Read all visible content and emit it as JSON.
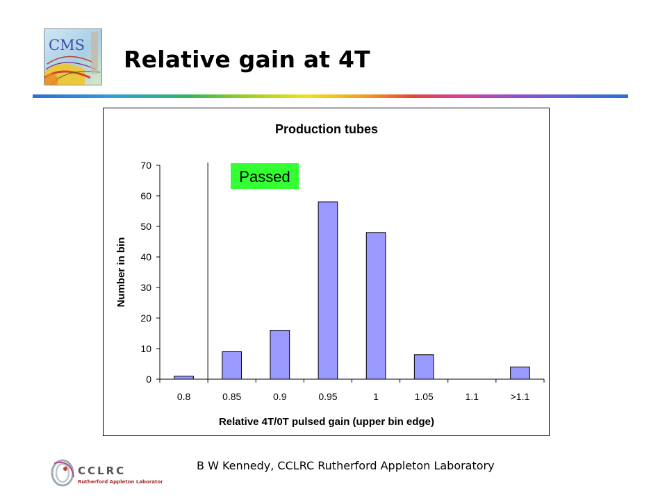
{
  "slide": {
    "title": "Relative gain at 4T",
    "footer": "B W Kennedy, CCLRC Rutherford Appleton Laboratory",
    "rule_colors": [
      "#2d6fd0",
      "#30b65a",
      "#f2e01e",
      "#f39a1e",
      "#e5433c",
      "#d8409a",
      "#8d4fd6"
    ]
  },
  "logos": {
    "cms": {
      "text": "CMS"
    },
    "cclrc": {
      "text": "CCLRC",
      "subtext": "Rutherford Appleton Laboratory"
    }
  },
  "chart_data": {
    "type": "bar",
    "title": "Production tubes",
    "xlabel": "Relative 4T/0T pulsed gain (upper bin edge)",
    "ylabel": "Number in bin",
    "categories": [
      "0.8",
      "0.85",
      "0.9",
      "0.95",
      "1",
      "1.05",
      "1.1",
      ">1.1"
    ],
    "values": [
      1,
      9,
      16,
      58,
      48,
      8,
      0,
      4
    ],
    "ylim": [
      0,
      70
    ],
    "yticks": [
      0,
      10,
      20,
      30,
      40,
      50,
      60,
      70
    ],
    "grid": false,
    "bar_color": "#9999ff",
    "annotation": {
      "text": "Passed",
      "background": "#33ff33",
      "cut_after_category": "0.8"
    }
  }
}
